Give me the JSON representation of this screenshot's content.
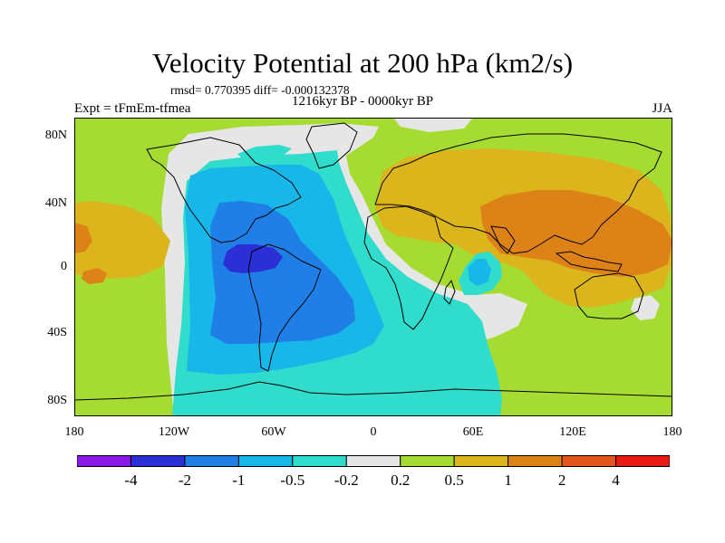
{
  "title": "Velocity Potential at 200 hPa (km2/s)",
  "stats": "rmsd= 0.770395 diff= -0.000132378",
  "period": "1216kyr BP - 0000kyr BP",
  "experiment": "Expt = tFmEm-tfmea",
  "season": "JJA",
  "map": {
    "lat_ticks": [
      "80N",
      "40N",
      "0",
      "40S",
      "80S"
    ],
    "lon_ticks": [
      "180",
      "120W",
      "60W",
      "0",
      "60E",
      "120E",
      "180"
    ]
  },
  "colorbar": {
    "colors": [
      "#8c1ae6",
      "#2d2fd6",
      "#1f7fe6",
      "#17b7ea",
      "#30dccb",
      "#e6e6e6",
      "#a6dc32",
      "#dcb51c",
      "#dc8216",
      "#e2541a",
      "#e81a14"
    ],
    "labels": [
      "-4",
      "-2",
      "-1",
      "-0.5",
      "-0.2",
      "0.2",
      "0.5",
      "1",
      "2",
      "4"
    ]
  },
  "legend_categories": [
    "< -4",
    "-4 to -2",
    "-2 to -1",
    "-1 to -0.5",
    "-0.5 to -0.2",
    "-0.2 to 0.2",
    "0.2 to 0.5",
    "0.5 to 1",
    "1 to 2",
    "2 to 4",
    "> 4"
  ]
}
